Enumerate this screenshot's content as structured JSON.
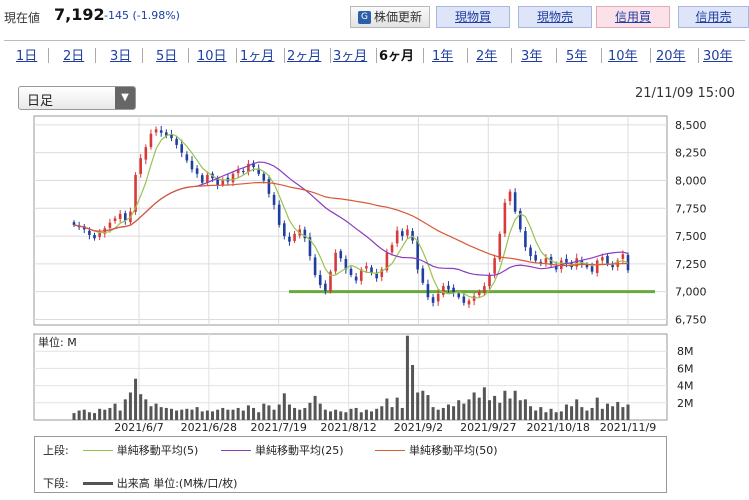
{
  "header": {
    "price_label": "現在値",
    "price_value": "7,192",
    "price_change": "-145 (-1.98%)",
    "update_button": "株価更新",
    "buttons": [
      "現物買",
      "現物売",
      "信用買",
      "信用売"
    ]
  },
  "tabs": [
    "1日",
    "2日",
    "3日",
    "5日",
    "10日",
    "1ヶ月",
    "2ヶ月",
    "3ヶ月",
    "6ヶ月",
    "1年",
    "2年",
    "3年",
    "5年",
    "10年",
    "20年",
    "30年"
  ],
  "selected_tab": "6ヶ月",
  "period_select": {
    "value": "日足"
  },
  "timestamp": "21/11/09 15:00",
  "colors": {
    "up_candle": "#d63a3a",
    "down_candle": "#1f3fa0",
    "ma5": "#9ac250",
    "ma25": "#8a3bc0",
    "ma50": "#d85a32",
    "support": "#6aa83a",
    "volume": "#555555"
  },
  "chart_data": {
    "type": "candlestick",
    "price_axis": {
      "ticks": [
        6750,
        7000,
        7250,
        7500,
        7750,
        8000,
        8250,
        8500
      ],
      "labels": [
        "6,750",
        "7,000",
        "7,250",
        "7,500",
        "7,750",
        "8,000",
        "8,250",
        "8,500"
      ],
      "range": [
        6700,
        8580
      ]
    },
    "volume_axis": {
      "unit_label": "単位: M",
      "ticks": [
        2,
        4,
        6,
        8
      ],
      "labels": [
        "2M",
        "4M",
        "6M",
        "8M"
      ],
      "range": [
        0,
        10
      ]
    },
    "date_labels": [
      "2021/6/7",
      "2021/6/28",
      "2021/7/19",
      "2021/8/12",
      "2021/9/2",
      "2021/9/27",
      "2021/10/18",
      "2021/11/9"
    ],
    "closes": [
      7600,
      7580,
      7560,
      7510,
      7480,
      7530,
      7570,
      7620,
      7660,
      7700,
      7640,
      7720,
      8050,
      8200,
      8300,
      8420,
      8460,
      8430,
      8400,
      8380,
      8320,
      8250,
      8180,
      8100,
      8060,
      7980,
      8050,
      8020,
      7960,
      8010,
      7990,
      8060,
      8100,
      8080,
      8150,
      8120,
      8060,
      8000,
      7880,
      7780,
      7600,
      7500,
      7450,
      7520,
      7560,
      7480,
      7320,
      7150,
      7060,
      7010,
      7180,
      7350,
      7300,
      7200,
      7150,
      7100,
      7200,
      7230,
      7170,
      7120,
      7200,
      7350,
      7420,
      7550,
      7500,
      7560,
      7460,
      7200,
      7080,
      6950,
      6900,
      6980,
      7050,
      7020,
      6990,
      6950,
      6900,
      6920,
      6960,
      7000,
      7050,
      7150,
      7300,
      7520,
      7800,
      7900,
      7720,
      7560,
      7400,
      7320,
      7280,
      7260,
      7300,
      7240,
      7200,
      7280,
      7260,
      7220,
      7300,
      7250,
      7220,
      7180,
      7280,
      7310,
      7250,
      7220,
      7280,
      7337,
      7192
    ],
    "volumes": [
      0.8,
      1.1,
      1.2,
      0.9,
      0.8,
      1.3,
      1.2,
      1.4,
      1.9,
      1.1,
      2.4,
      3.2,
      4.8,
      3.0,
      2.4,
      1.6,
      1.9,
      1.5,
      1.4,
      1.3,
      1.1,
      1.2,
      1.3,
      1.2,
      1.5,
      1.0,
      1.1,
      1.0,
      1.2,
      1.4,
      1.2,
      1.2,
      1.4,
      1.1,
      1.7,
      1.4,
      0.9,
      1.9,
      1.7,
      1.2,
      1.8,
      3.1,
      1.8,
      1.4,
      1.2,
      1.4,
      2.0,
      2.8,
      1.9,
      1.2,
      1.0,
      1.2,
      1.0,
      0.9,
      1.3,
      1.4,
      0.9,
      1.2,
      1.0,
      1.3,
      1.6,
      2.5,
      1.5,
      2.6,
      1.4,
      9.8,
      6.4,
      3.2,
      3.4,
      2.9,
      1.5,
      1.2,
      1.4,
      1.8,
      1.6,
      2.3,
      1.9,
      2.4,
      3.2,
      2.6,
      3.8,
      2.3,
      2.8,
      2.0,
      3.4,
      2.5,
      3.4,
      2.3,
      2.4,
      1.6,
      1.1,
      1.5,
      0.9,
      1.3,
      0.9,
      1.0,
      1.8,
      1.6,
      2.4,
      1.5,
      1.1,
      1.4,
      2.6,
      1.3,
      1.9,
      1.6,
      2.1,
      1.5,
      1.8
    ],
    "support_level": 7000,
    "legend": [
      {
        "group": "上段:",
        "name": "単純移動平均(5)",
        "color": "#9ac250"
      },
      {
        "group": "",
        "name": "単純移動平均(25)",
        "color": "#8a3bc0"
      },
      {
        "group": "",
        "name": "単純移動平均(50)",
        "color": "#d85a32"
      },
      {
        "group": "下段:",
        "name": "出来高 単位:(M株/口/枚)",
        "color": "#555555"
      }
    ]
  }
}
